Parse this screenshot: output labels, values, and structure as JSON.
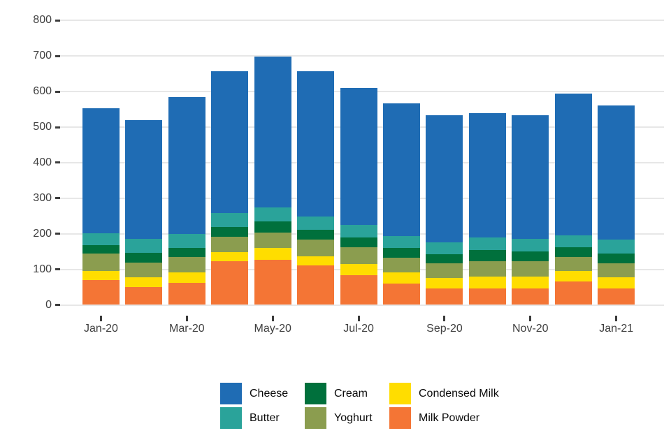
{
  "chart_data": {
    "type": "bar",
    "stacked": true,
    "title": "",
    "xlabel": "",
    "ylabel": "",
    "grid": "horizontal",
    "categories": [
      "Jan-20",
      "Feb-20",
      "Mar-20",
      "Apr-20",
      "May-20",
      "Jun-20",
      "Jul-20",
      "Aug-20",
      "Sep-20",
      "Oct-20",
      "Nov-20",
      "Dec-20",
      "Jan-21"
    ],
    "x_tick_labels": [
      "Jan-20",
      "Mar-20",
      "May-20",
      "Jul-20",
      "Sep-20",
      "Nov-20",
      "Jan-21"
    ],
    "x_tick_every": 2,
    "y_axis": {
      "min": 0,
      "max": 800,
      "step": 100,
      "tick_labels": [
        "0",
        "100",
        "200",
        "300",
        "400",
        "500",
        "600",
        "700",
        "800"
      ]
    },
    "series": [
      {
        "name": "Milk Powder",
        "color": "#F47535",
        "values": [
          70,
          51,
          62,
          122,
          127,
          111,
          84,
          59,
          46,
          47,
          47,
          65,
          47
        ]
      },
      {
        "name": "Condensed Milk",
        "color": "#FFDD00",
        "values": [
          26,
          26,
          29,
          26,
          33,
          26,
          31,
          33,
          29,
          33,
          33,
          31,
          30
        ]
      },
      {
        "name": "Yoghurt",
        "color": "#8B9D4F",
        "values": [
          48,
          41,
          44,
          43,
          43,
          47,
          48,
          41,
          42,
          43,
          43,
          39,
          39
        ]
      },
      {
        "name": "Cream",
        "color": "#00703C",
        "values": [
          23,
          29,
          26,
          29,
          31,
          28,
          27,
          27,
          25,
          31,
          27,
          28,
          29
        ]
      },
      {
        "name": "Butter",
        "color": "#2AA39A",
        "values": [
          35,
          39,
          38,
          39,
          40,
          37,
          34,
          33,
          33,
          36,
          36,
          33,
          38
        ]
      },
      {
        "name": "Cheese",
        "color": "#1F6CB4",
        "values": [
          352,
          334,
          385,
          399,
          425,
          409,
          386,
          374,
          358,
          350,
          347,
          398,
          378
        ]
      }
    ],
    "totals": [
      554,
      520,
      584,
      658,
      699,
      658,
      610,
      567,
      533,
      540,
      533,
      594,
      561
    ],
    "legend": {
      "position": "bottom",
      "columns": [
        [
          "Cheese",
          "Butter"
        ],
        [
          "Cream",
          "Yoghurt"
        ],
        [
          "Condensed Milk",
          "Milk Powder"
        ]
      ]
    }
  }
}
